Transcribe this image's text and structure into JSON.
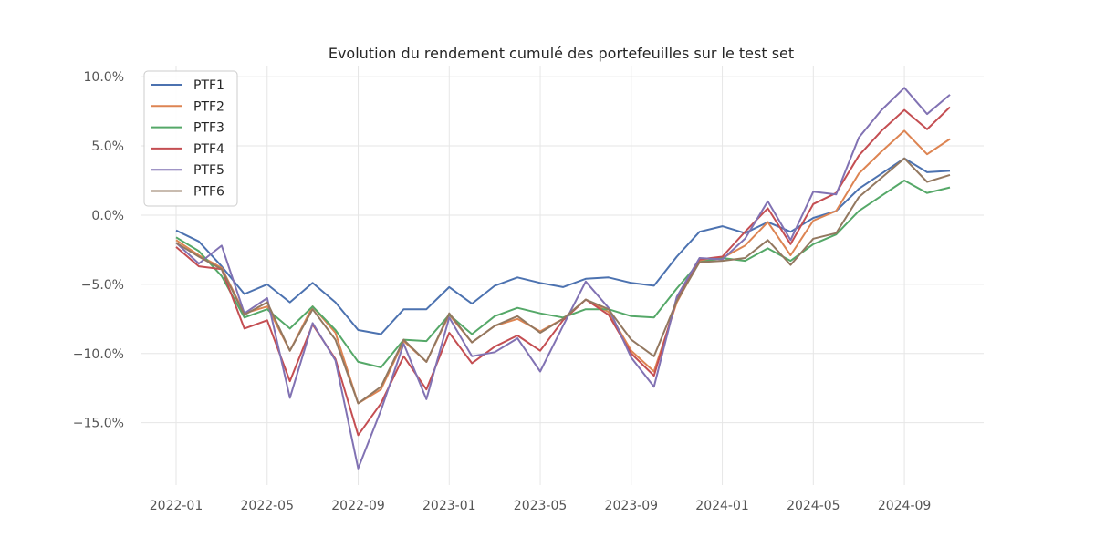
{
  "chart_data": {
    "type": "line",
    "title": "Evolution du rendement cumulé des portefeuilles sur le test set",
    "xlabel": "",
    "ylabel": "",
    "x": [
      "2022-01",
      "2022-02",
      "2022-03",
      "2022-04",
      "2022-05",
      "2022-06",
      "2022-07",
      "2022-08",
      "2022-09",
      "2022-10",
      "2022-11",
      "2022-12",
      "2023-01",
      "2023-02",
      "2023-03",
      "2023-04",
      "2023-05",
      "2023-06",
      "2023-07",
      "2023-08",
      "2023-09",
      "2023-10",
      "2023-11",
      "2023-12",
      "2024-01",
      "2024-02",
      "2024-03",
      "2024-04",
      "2024-05",
      "2024-06",
      "2024-07",
      "2024-08",
      "2024-09",
      "2024-10",
      "2024-11"
    ],
    "x_ticks": [
      "2022-01",
      "2022-05",
      "2022-09",
      "2023-01",
      "2023-05",
      "2023-09",
      "2024-01",
      "2024-05",
      "2024-09"
    ],
    "y_ticks": [
      10,
      5,
      0,
      -5,
      -10,
      -15
    ],
    "y_tick_labels": [
      "10.0%",
      "5.0%",
      "0.0%",
      "−5.0%",
      "−10.0%",
      "−15.0%"
    ],
    "ylim": [
      -19.5,
      10.8
    ],
    "grid": true,
    "legend_position": "top-left",
    "series": [
      {
        "name": "PTF1",
        "color": "#4c72b0",
        "values": [
          -1.1,
          -1.9,
          -3.7,
          -5.7,
          -5.0,
          -6.3,
          -4.9,
          -6.3,
          -8.3,
          -8.6,
          -6.8,
          -6.8,
          -5.2,
          -6.4,
          -5.1,
          -4.5,
          -4.9,
          -5.2,
          -4.6,
          -4.5,
          -4.9,
          -5.1,
          -3.0,
          -1.2,
          -0.8,
          -1.3,
          -0.5,
          -1.2,
          -0.2,
          0.3,
          1.9,
          3.0,
          4.1,
          3.1,
          3.2
        ]
      },
      {
        "name": "PTF2",
        "color": "#dd8452",
        "values": [
          -1.8,
          -2.9,
          -3.8,
          -7.1,
          -6.6,
          -9.8,
          -6.6,
          -8.5,
          -13.6,
          -12.6,
          -9.1,
          -10.6,
          -7.2,
          -9.2,
          -8.0,
          -7.5,
          -8.4,
          -7.5,
          -6.1,
          -7.0,
          -9.8,
          -11.3,
          -6.3,
          -3.3,
          -3.1,
          -2.2,
          -0.5,
          -2.9,
          -0.4,
          0.3,
          3.0,
          4.6,
          6.1,
          4.4,
          5.5
        ]
      },
      {
        "name": "PTF3",
        "color": "#55a868",
        "values": [
          -1.6,
          -2.6,
          -4.4,
          -7.4,
          -6.8,
          -8.2,
          -6.6,
          -8.3,
          -10.6,
          -11.0,
          -9.0,
          -9.1,
          -7.2,
          -8.6,
          -7.3,
          -6.7,
          -7.1,
          -7.4,
          -6.8,
          -6.8,
          -7.3,
          -7.4,
          -5.3,
          -3.4,
          -3.1,
          -3.3,
          -2.4,
          -3.3,
          -2.1,
          -1.4,
          0.3,
          1.4,
          2.5,
          1.6,
          2.0
        ]
      },
      {
        "name": "PTF4",
        "color": "#c44e52",
        "values": [
          -2.3,
          -3.7,
          -3.9,
          -8.2,
          -7.6,
          -12.0,
          -7.9,
          -10.4,
          -15.9,
          -13.6,
          -10.2,
          -12.6,
          -8.5,
          -10.7,
          -9.5,
          -8.7,
          -9.8,
          -7.6,
          -6.1,
          -7.2,
          -10.0,
          -11.6,
          -6.1,
          -3.2,
          -3.0,
          -1.2,
          0.5,
          -2.1,
          0.8,
          1.6,
          4.3,
          6.1,
          7.6,
          6.2,
          7.8
        ]
      },
      {
        "name": "PTF5",
        "color": "#8172b3",
        "values": [
          -2.0,
          -3.5,
          -2.2,
          -7.1,
          -6.0,
          -13.2,
          -7.8,
          -10.5,
          -18.3,
          -14.1,
          -9.3,
          -13.3,
          -7.4,
          -10.2,
          -9.9,
          -8.9,
          -11.3,
          -8.0,
          -4.8,
          -6.7,
          -10.3,
          -12.4,
          -5.9,
          -3.1,
          -3.2,
          -1.7,
          1.0,
          -1.8,
          1.7,
          1.5,
          5.6,
          7.6,
          9.2,
          7.3,
          8.7
        ]
      },
      {
        "name": "PTF6",
        "color": "#937860",
        "values": [
          -2.0,
          -3.0,
          -3.9,
          -7.2,
          -6.3,
          -9.8,
          -6.8,
          -9.0,
          -13.6,
          -12.4,
          -9.0,
          -10.6,
          -7.1,
          -9.2,
          -8.0,
          -7.3,
          -8.5,
          -7.5,
          -6.1,
          -6.8,
          -9.0,
          -10.2,
          -6.2,
          -3.4,
          -3.3,
          -3.1,
          -1.8,
          -3.6,
          -1.7,
          -1.3,
          1.3,
          2.7,
          4.1,
          2.4,
          2.9
        ]
      }
    ]
  }
}
